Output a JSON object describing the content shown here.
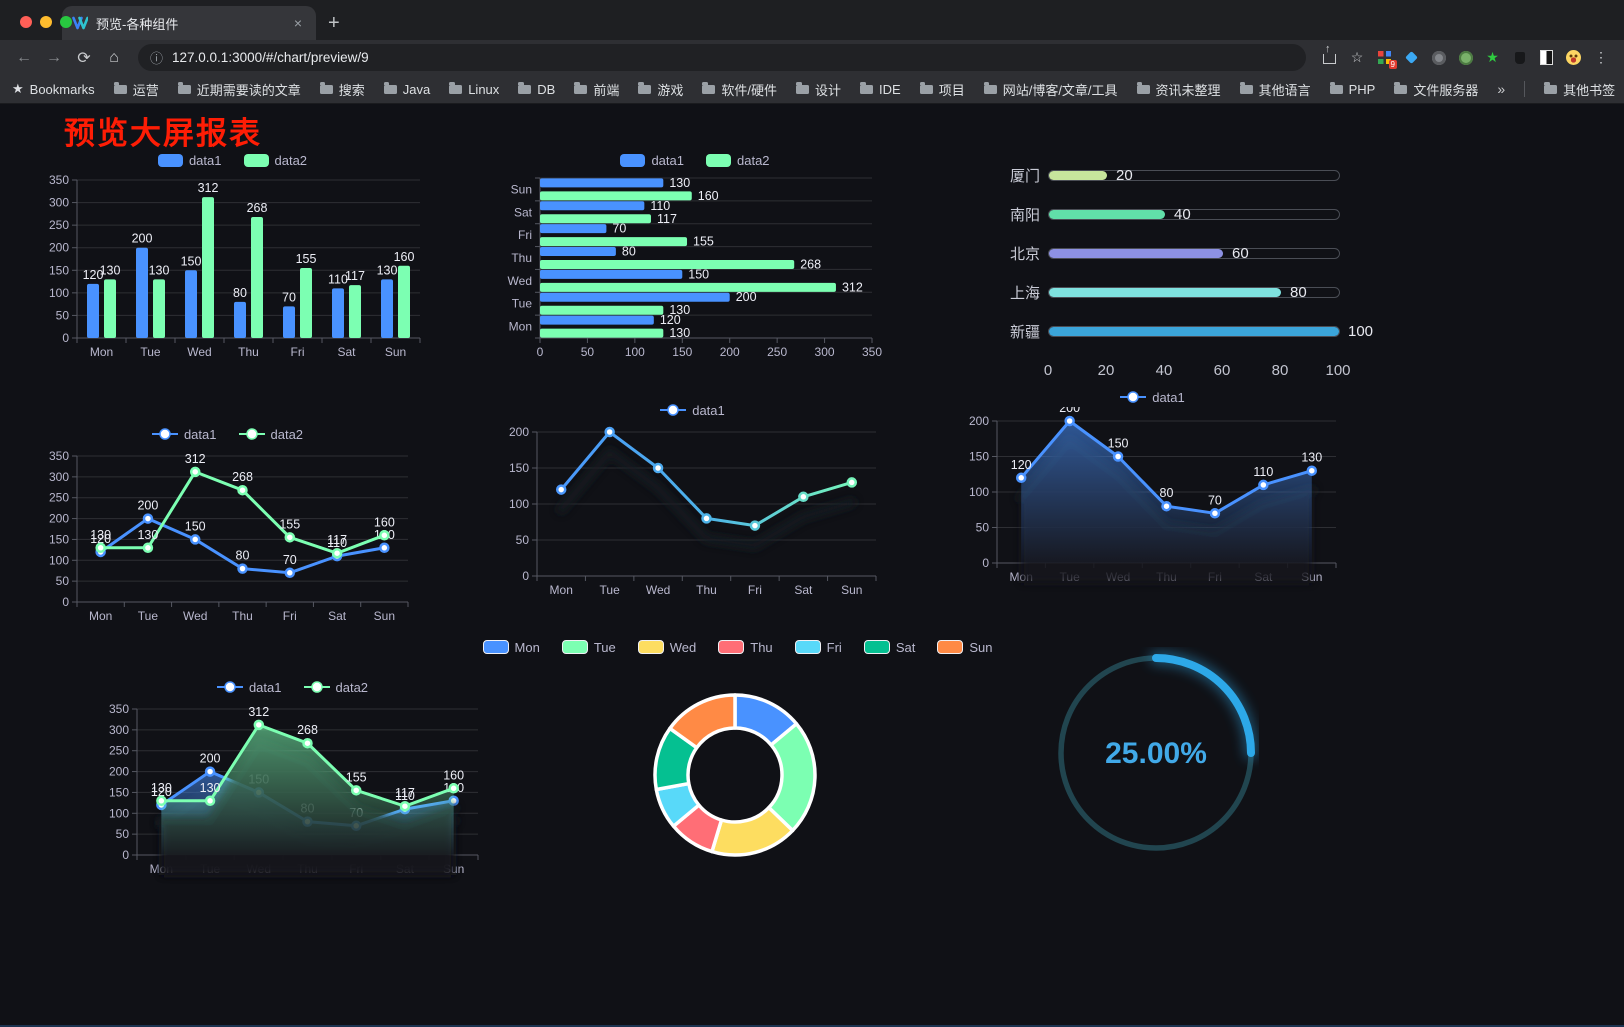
{
  "browser": {
    "tab_title": "预览-各种组件",
    "url": "127.0.0.1:3000/#/chart/preview/9",
    "icons": {
      "back": "←",
      "forward": "→",
      "reload": "⟳",
      "home": "⌂",
      "info": "ⓘ",
      "share": "↑",
      "star": "☆",
      "menu": "⋮",
      "new_tab": "+",
      "tab_close": "×",
      "bookmarks_star": "★",
      "overflow": "»",
      "ext_badge": "9"
    },
    "bookmarks_label": "Bookmarks",
    "bookmarks": [
      "运营",
      "近期需要读的文章",
      "搜索",
      "Java",
      "Linux",
      "DB",
      "前端",
      "游戏",
      "软件/硬件",
      "设计",
      "IDE",
      "项目",
      "网站/博客/文章/工具",
      "资讯未整理",
      "其他语言",
      "PHP",
      "文件服务器"
    ],
    "other_bookmarks": "其他书签"
  },
  "page": {
    "title": "预览大屏报表",
    "title_color": "#fe1d05",
    "axis_text_color": "#b9b8ce",
    "label_color": "#edeef6"
  },
  "chart_data": [
    {
      "id": "grouped-bar",
      "type": "bar",
      "categories": [
        "Mon",
        "Tue",
        "Wed",
        "Thu",
        "Fri",
        "Sat",
        "Sun"
      ],
      "series": [
        {
          "name": "data1",
          "color": "#4992ff",
          "values": [
            120,
            200,
            150,
            80,
            70,
            110,
            130
          ]
        },
        {
          "name": "data2",
          "color": "#7cffb2",
          "values": [
            130,
            130,
            312,
            268,
            155,
            117,
            160
          ]
        }
      ],
      "ylim": [
        0,
        350
      ],
      "yticks": [
        0,
        50,
        100,
        150,
        200,
        250,
        300,
        350
      ],
      "data_labels": true,
      "legend_position": "top",
      "grid": "horizontal"
    },
    {
      "id": "grouped-hbar",
      "type": "hbar",
      "categories": [
        "Mon",
        "Tue",
        "Wed",
        "Thu",
        "Fri",
        "Sat",
        "Sun"
      ],
      "display_order_top_to_bottom": [
        "Sun",
        "Sat",
        "Fri",
        "Thu",
        "Wed",
        "Tue",
        "Mon"
      ],
      "series": [
        {
          "name": "data1",
          "color": "#4992ff",
          "values": [
            120,
            200,
            150,
            80,
            70,
            110,
            130
          ]
        },
        {
          "name": "data2",
          "color": "#7cffb2",
          "values": [
            130,
            130,
            312,
            268,
            155,
            117,
            160
          ]
        }
      ],
      "xlim": [
        0,
        350
      ],
      "xticks": [
        0,
        50,
        100,
        150,
        200,
        250,
        300,
        350
      ],
      "data_labels": true,
      "legend_position": "top"
    },
    {
      "id": "city-progress",
      "type": "progress-bar",
      "rows": [
        {
          "label": "厦门",
          "value": 20,
          "color": "#c7e59c"
        },
        {
          "label": "南阳",
          "value": 40,
          "color": "#61dfa9"
        },
        {
          "label": "北京",
          "value": 60,
          "color": "#8d91e3"
        },
        {
          "label": "上海",
          "value": 80,
          "color": "#7fe2df"
        },
        {
          "label": "新疆",
          "value": 100,
          "color": "#3ba5da"
        }
      ],
      "xlim": [
        0,
        100
      ],
      "xticks": [
        0,
        20,
        40,
        60,
        80,
        100
      ]
    },
    {
      "id": "two-line",
      "type": "line",
      "categories": [
        "Mon",
        "Tue",
        "Wed",
        "Thu",
        "Fri",
        "Sat",
        "Sun"
      ],
      "series": [
        {
          "name": "data1",
          "color": "#4992ff",
          "values": [
            120,
            200,
            150,
            80,
            70,
            110,
            130
          ]
        },
        {
          "name": "data2",
          "color": "#7cffb2",
          "values": [
            130,
            130,
            312,
            268,
            155,
            117,
            160
          ]
        }
      ],
      "ylim": [
        0,
        350
      ],
      "yticks": [
        0,
        50,
        100,
        150,
        200,
        250,
        300,
        350
      ],
      "data_labels": true,
      "symbols": true
    },
    {
      "id": "gradient-line",
      "type": "line",
      "categories": [
        "Mon",
        "Tue",
        "Wed",
        "Thu",
        "Fri",
        "Sat",
        "Sun"
      ],
      "series": [
        {
          "name": "data1",
          "gradient": [
            "#4992ff",
            "#4db3e8",
            "#7cffb2"
          ],
          "values": [
            120,
            200,
            150,
            80,
            70,
            110,
            130
          ]
        }
      ],
      "ylim": [
        0,
        200
      ],
      "yticks": [
        0,
        50,
        100,
        150,
        200
      ],
      "data_labels": false,
      "symbols": true,
      "shadow": true
    },
    {
      "id": "area-line",
      "type": "line",
      "categories": [
        "Mon",
        "Tue",
        "Wed",
        "Thu",
        "Fri",
        "Sat",
        "Sun"
      ],
      "series": [
        {
          "name": "data1",
          "color": "#4992ff",
          "area": true,
          "values": [
            120,
            200,
            150,
            80,
            70,
            110,
            130
          ]
        }
      ],
      "ylim": [
        0,
        200
      ],
      "yticks": [
        0,
        50,
        100,
        150,
        200
      ],
      "data_labels": true,
      "symbols": true,
      "shadow": true
    },
    {
      "id": "two-area-line",
      "type": "line",
      "categories": [
        "Mon",
        "Tue",
        "Wed",
        "Thu",
        "Fri",
        "Sat",
        "Sun"
      ],
      "series": [
        {
          "name": "data1",
          "color": "#4992ff",
          "area": true,
          "values": [
            120,
            200,
            150,
            80,
            70,
            110,
            130
          ]
        },
        {
          "name": "data2",
          "color": "#7cffb2",
          "area": true,
          "values": [
            130,
            130,
            312,
            268,
            155,
            117,
            160
          ]
        }
      ],
      "ylim": [
        0,
        350
      ],
      "yticks": [
        0,
        50,
        100,
        150,
        200,
        250,
        300,
        350
      ],
      "data_labels": true,
      "symbols": true,
      "shadow": true
    },
    {
      "id": "weekday-donut",
      "type": "pie",
      "donut": true,
      "categories": [
        "Mon",
        "Tue",
        "Wed",
        "Thu",
        "Fri",
        "Sat",
        "Sun"
      ],
      "values": [
        120,
        200,
        150,
        80,
        70,
        110,
        130
      ],
      "colors": [
        "#4992ff",
        "#7cffb2",
        "#fddd60",
        "#ff6e76",
        "#58d9f9",
        "#05c091",
        "#ff8a45"
      ],
      "border_color": "#ffffff"
    },
    {
      "id": "percent-gauge",
      "type": "gauge",
      "value": 25,
      "value_label": "25.00%",
      "color": "#2da8e8",
      "track_color": "#21454f",
      "text_color": "#41a9e8"
    }
  ]
}
